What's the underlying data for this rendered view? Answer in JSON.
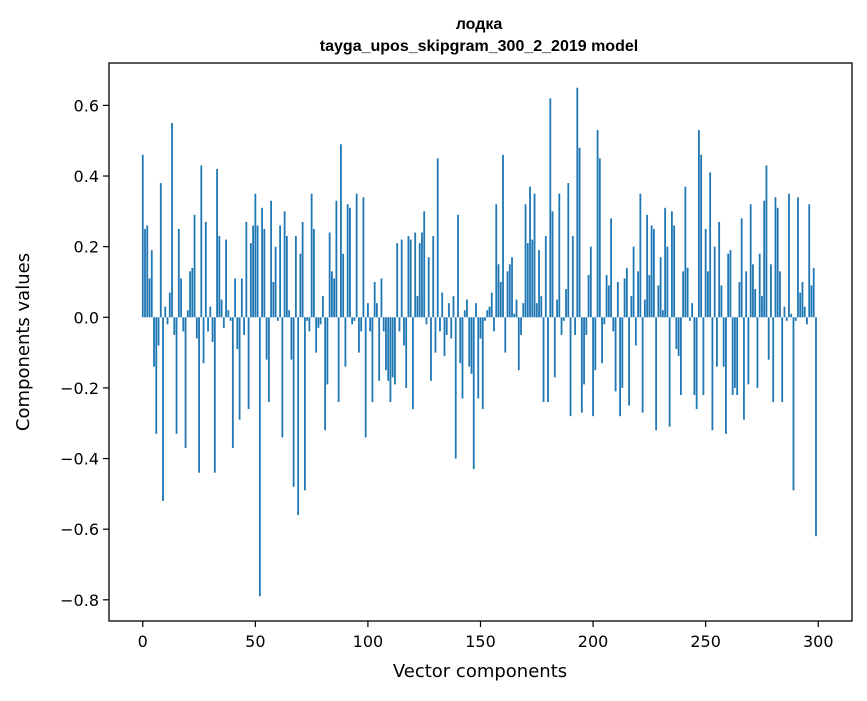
{
  "chart_data": {
    "type": "bar",
    "title": "лодка",
    "subtitle": "tayga_upos_skipgram_300_2_2019 model",
    "xlabel": "Vector components",
    "ylabel": "Components values",
    "xlim": [
      -15,
      315
    ],
    "ylim": [
      -0.86,
      0.72
    ],
    "xticks": [
      0,
      50,
      100,
      150,
      200,
      250,
      300
    ],
    "xtick_labels": [
      "0",
      "50",
      "100",
      "150",
      "200",
      "250",
      "300"
    ],
    "yticks": [
      -0.8,
      -0.6,
      -0.4,
      -0.2,
      0.0,
      0.2,
      0.4,
      0.6
    ],
    "ytick_labels": [
      "−0.8",
      "−0.6",
      "−0.4",
      "−0.2",
      "0.0",
      "0.2",
      "0.4",
      "0.6"
    ],
    "grid": false,
    "bar_color": "#1f77b4",
    "x": [
      0,
      1,
      2,
      3,
      4,
      5,
      6,
      7,
      8,
      9,
      10,
      11,
      12,
      13,
      14,
      15,
      16,
      17,
      18,
      19,
      20,
      21,
      22,
      23,
      24,
      25,
      26,
      27,
      28,
      29,
      30,
      31,
      32,
      33,
      34,
      35,
      36,
      37,
      38,
      39,
      40,
      41,
      42,
      43,
      44,
      45,
      46,
      47,
      48,
      49,
      50,
      51,
      52,
      53,
      54,
      55,
      56,
      57,
      58,
      59,
      60,
      61,
      62,
      63,
      64,
      65,
      66,
      67,
      68,
      69,
      70,
      71,
      72,
      73,
      74,
      75,
      76,
      77,
      78,
      79,
      80,
      81,
      82,
      83,
      84,
      85,
      86,
      87,
      88,
      89,
      90,
      91,
      92,
      93,
      94,
      95,
      96,
      97,
      98,
      99,
      100,
      101,
      102,
      103,
      104,
      105,
      106,
      107,
      108,
      109,
      110,
      111,
      112,
      113,
      114,
      115,
      116,
      117,
      118,
      119,
      120,
      121,
      122,
      123,
      124,
      125,
      126,
      127,
      128,
      129,
      130,
      131,
      132,
      133,
      134,
      135,
      136,
      137,
      138,
      139,
      140,
      141,
      142,
      143,
      144,
      145,
      146,
      147,
      148,
      149,
      150,
      151,
      152,
      153,
      154,
      155,
      156,
      157,
      158,
      159,
      160,
      161,
      162,
      163,
      164,
      165,
      166,
      167,
      168,
      169,
      170,
      171,
      172,
      173,
      174,
      175,
      176,
      177,
      178,
      179,
      180,
      181,
      182,
      183,
      184,
      185,
      186,
      187,
      188,
      189,
      190,
      191,
      192,
      193,
      194,
      195,
      196,
      197,
      198,
      199,
      200,
      201,
      202,
      203,
      204,
      205,
      206,
      207,
      208,
      209,
      210,
      211,
      212,
      213,
      214,
      215,
      216,
      217,
      218,
      219,
      220,
      221,
      222,
      223,
      224,
      225,
      226,
      227,
      228,
      229,
      230,
      231,
      232,
      233,
      234,
      235,
      236,
      237,
      238,
      239,
      240,
      241,
      242,
      243,
      244,
      245,
      246,
      247,
      248,
      249,
      250,
      251,
      252,
      253,
      254,
      255,
      256,
      257,
      258,
      259,
      260,
      261,
      262,
      263,
      264,
      265,
      266,
      267,
      268,
      269,
      270,
      271,
      272,
      273,
      274,
      275,
      276,
      277,
      278,
      279,
      280,
      281,
      282,
      283,
      284,
      285,
      286,
      287,
      288,
      289,
      290,
      291,
      292,
      293,
      294,
      295,
      296,
      297,
      298,
      299
    ],
    "values": [
      0.46,
      0.25,
      0.26,
      0.11,
      0.19,
      -0.14,
      -0.33,
      -0.08,
      0.38,
      -0.52,
      0.03,
      -0.02,
      0.07,
      0.55,
      -0.05,
      -0.33,
      0.25,
      0.11,
      -0.04,
      -0.37,
      0.02,
      0.13,
      0.14,
      0.29,
      -0.06,
      -0.44,
      0.43,
      -0.13,
      0.27,
      -0.04,
      0.03,
      -0.07,
      -0.44,
      0.42,
      0.23,
      0.05,
      -0.03,
      0.22,
      0.02,
      -0.01,
      -0.37,
      0.11,
      -0.09,
      -0.29,
      0.11,
      -0.05,
      0.27,
      -0.26,
      0.21,
      0.26,
      0.35,
      0.26,
      -0.79,
      0.31,
      0.25,
      -0.12,
      -0.24,
      0.33,
      0.1,
      0.2,
      -0.01,
      0.26,
      -0.34,
      0.3,
      0.23,
      0.02,
      -0.12,
      -0.48,
      0.23,
      -0.56,
      0.18,
      0.27,
      -0.49,
      -0.01,
      -0.04,
      0.35,
      0.25,
      -0.1,
      -0.03,
      -0.02,
      0.06,
      -0.32,
      -0.19,
      0.24,
      0.13,
      0.11,
      0.33,
      -0.24,
      0.49,
      0.18,
      -0.14,
      0.32,
      0.31,
      -0.02,
      -0.01,
      0.35,
      -0.1,
      -0.04,
      0.34,
      -0.34,
      0.04,
      -0.04,
      -0.24,
      0.1,
      0.04,
      -0.18,
      0.11,
      -0.04,
      -0.15,
      -0.18,
      -0.24,
      -0.17,
      -0.19,
      0.21,
      -0.04,
      0.22,
      -0.08,
      -0.2,
      0.23,
      0.22,
      -0.26,
      0.24,
      0.06,
      0.21,
      0.24,
      0.3,
      -0.02,
      0.17,
      -0.18,
      0.23,
      -0.1,
      0.45,
      -0.04,
      0.07,
      -0.11,
      -0.05,
      0.04,
      -0.06,
      0.06,
      -0.4,
      0.29,
      -0.13,
      -0.23,
      0.02,
      0.05,
      -0.14,
      -0.16,
      -0.43,
      0.04,
      -0.23,
      -0.06,
      -0.26,
      -0.01,
      0.02,
      0.03,
      0.07,
      -0.04,
      0.32,
      0.15,
      0.1,
      0.46,
      -0.1,
      0.13,
      0.15,
      0.17,
      0.01,
      0.05,
      -0.15,
      -0.05,
      0.04,
      0.32,
      0.21,
      0.37,
      0.22,
      0.35,
      0.04,
      0.19,
      0.06,
      -0.24,
      0.23,
      -0.24,
      0.62,
      0.3,
      -0.17,
      0.05,
      0.35,
      -0.05,
      -0.01,
      0.08,
      0.38,
      -0.28,
      0.23,
      -0.05,
      0.65,
      0.48,
      -0.27,
      -0.19,
      -0.05,
      0.12,
      0.2,
      -0.28,
      -0.15,
      0.53,
      0.45,
      -0.13,
      -0.02,
      0.12,
      0.09,
      0.28,
      -0.04,
      -0.21,
      0.1,
      -0.28,
      -0.2,
      0.11,
      0.14,
      -0.25,
      0.06,
      0.2,
      -0.08,
      0.13,
      0.35,
      -0.27,
      0.05,
      0.29,
      0.12,
      0.26,
      0.25,
      -0.32,
      0.09,
      0.17,
      0.02,
      0.31,
      0.2,
      -0.31,
      0.3,
      0.26,
      -0.09,
      -0.11,
      -0.22,
      0.13,
      0.37,
      0.14,
      -0.01,
      0.04,
      -0.22,
      -0.26,
      0.53,
      0.46,
      -0.22,
      0.25,
      0.13,
      0.41,
      -0.32,
      0.2,
      -0.14,
      0.27,
      0.09,
      -0.14,
      -0.33,
      0.18,
      0.19,
      -0.22,
      -0.2,
      -0.22,
      0.1,
      0.28,
      -0.29,
      0.13,
      -0.19,
      0.32,
      0.15,
      0.08,
      -0.2,
      0.18,
      0.06,
      0.33,
      0.43,
      -0.12,
      0.15,
      -0.24,
      0.34,
      0.31,
      0.13,
      -0.24,
      0.03,
      -0.01,
      0.35,
      0.01,
      -0.49,
      -0.01,
      0.34,
      0.07,
      0.1,
      0.03,
      -0.02,
      0.32,
      0.09,
      0.14,
      -0.62
    ]
  }
}
